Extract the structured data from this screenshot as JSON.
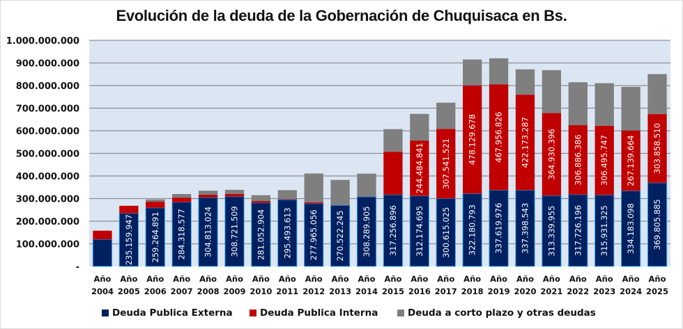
{
  "chart_data": {
    "type": "bar",
    "stacked": true,
    "title": "Evolución de la deuda de la Gobernación de Chuquisaca en Bs.",
    "xlabel": "",
    "ylabel": "",
    "ylim": [
      0,
      1000000000
    ],
    "y_ticks": [
      0,
      100000000,
      200000000,
      300000000,
      400000000,
      500000000,
      600000000,
      700000000,
      800000000,
      900000000,
      1000000000
    ],
    "y_tick_labels": [
      "-",
      "100.000.000",
      "200.000.000",
      "300.000.000",
      "400.000.000",
      "500.000.000",
      "600.000.000",
      "700.000.000",
      "800.000.000",
      "900.000.000",
      "1.000.000.000"
    ],
    "grid": true,
    "legend_position": "bottom",
    "categories": [
      [
        "Año",
        "2004"
      ],
      [
        "Año",
        "2005"
      ],
      [
        "Año",
        "2006"
      ],
      [
        "Año",
        "2007"
      ],
      [
        "Año",
        "2008"
      ],
      [
        "Año",
        "2009"
      ],
      [
        "Año",
        "2010"
      ],
      [
        "Año",
        "2011"
      ],
      [
        "Año",
        "2012"
      ],
      [
        "Año",
        "2013"
      ],
      [
        "Año",
        "2014"
      ],
      [
        "Año",
        "2015"
      ],
      [
        "Año",
        "2016"
      ],
      [
        "Año",
        "2017"
      ],
      [
        "Año",
        "2018"
      ],
      [
        "Año",
        "2019"
      ],
      [
        "Año",
        "2020"
      ],
      [
        "Año",
        "2021"
      ],
      [
        "Año",
        "2022"
      ],
      [
        "Año",
        "2023"
      ],
      [
        "Año",
        "2024"
      ],
      [
        "Año",
        "2025"
      ]
    ],
    "series": [
      {
        "name": "Deuda Publica Externa",
        "color": "#002060",
        "values": [
          120000000,
          235159947,
          259264891,
          284318577,
          304813024,
          308721509,
          281052904,
          295493613,
          277965056,
          270522245,
          308289905,
          317256896,
          312174695,
          300615025,
          322180793,
          337619976,
          337398543,
          313339955,
          317726196,
          315931325,
          334183098,
          369805885
        ],
        "labels": [
          null,
          "235.159.947",
          "259.264.891",
          "284.318.577",
          "304.813.024",
          "308.721.509",
          "281.052.904",
          "295.493.613",
          "277.965.056",
          "270.522.245",
          "308.289.905",
          "317.256.896",
          "312.174.695",
          "300.615.025",
          "322.180.793",
          "337.619.976",
          "337.398.543",
          "313.339.955",
          "317.726.196",
          "315.931.325",
          "334.183.098",
          "369.805.885"
        ]
      },
      {
        "name": "Deuda Publica Interna",
        "color": "#c00000",
        "values": [
          38000000,
          33000000,
          27000000,
          20000000,
          12000000,
          12000000,
          8000000,
          2000000,
          5000000,
          0,
          0,
          190000000,
          244484841,
          307541521,
          478129678,
          467956826,
          422173287,
          364930396,
          306886386,
          306495747,
          267139664,
          303858510
        ],
        "labels": [
          null,
          null,
          null,
          null,
          null,
          null,
          null,
          null,
          null,
          null,
          null,
          null,
          "244.484.841",
          "307.541.521",
          "478.129.678",
          "467.956.826",
          "422.173.287",
          "364.930.396",
          "306.886.386",
          "306.495.747",
          "267.139.664",
          "303.858.510"
        ]
      },
      {
        "name": "Deuda a corto plazo y otras deudas",
        "color": "#7f7f7f",
        "values": [
          0,
          0,
          10000000,
          16000000,
          18000000,
          18000000,
          26000000,
          40000000,
          128000000,
          112000000,
          102000000,
          100000000,
          118000000,
          116000000,
          115000000,
          115000000,
          112000000,
          190000000,
          190000000,
          188000000,
          193000000,
          177000000
        ],
        "labels": []
      }
    ]
  },
  "colors": {
    "plot_background": "#dce6f2",
    "gridline": "#8c8c99",
    "bar_outline": "#33aaff"
  }
}
